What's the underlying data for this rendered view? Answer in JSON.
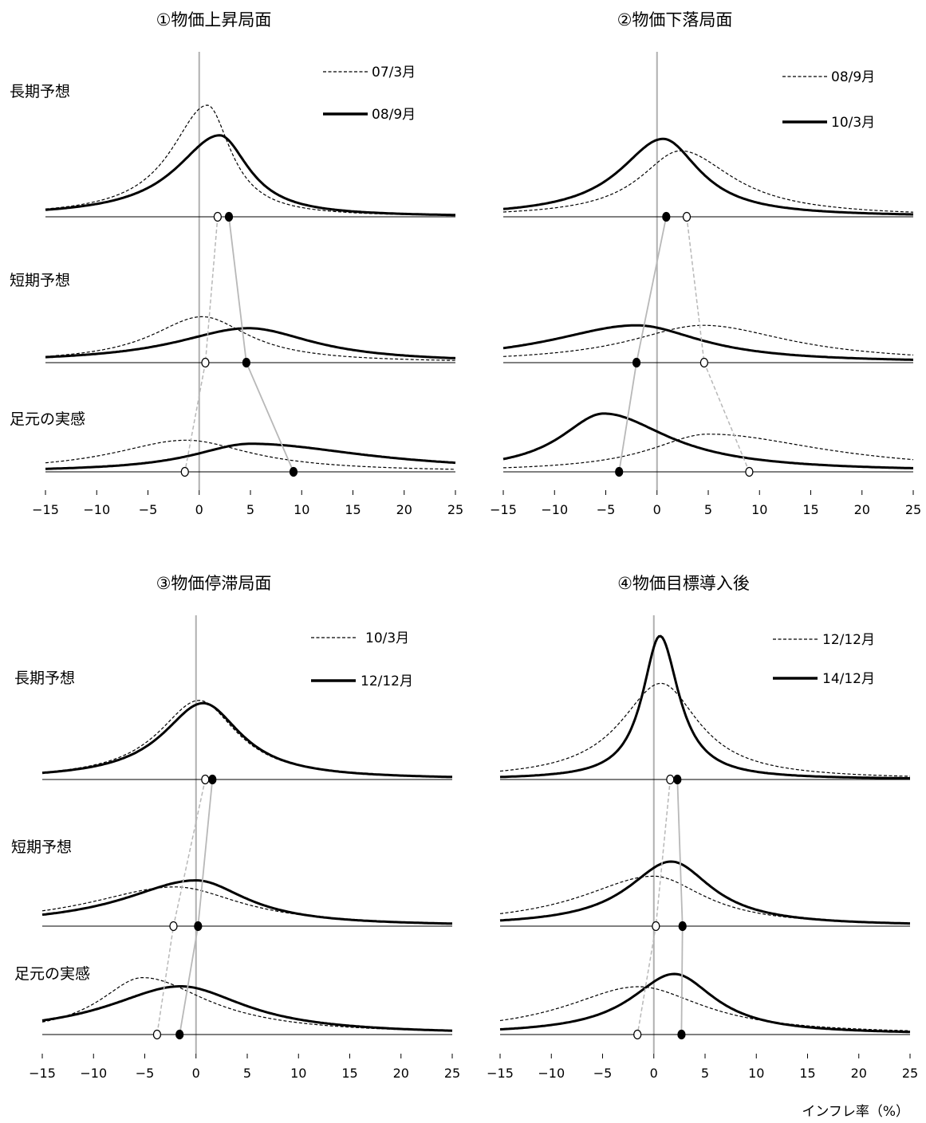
{
  "chart_data": {
    "type": "line",
    "xlabel": "インフレ率（%）",
    "xlim": [
      -15,
      25
    ],
    "x_ticks": [
      "−15",
      "−10",
      "−5",
      "0",
      "5",
      "10",
      "15",
      "20",
      "25"
    ],
    "row_labels": [
      "長期予想",
      "短期予想",
      "足元の実感"
    ],
    "panels": [
      {
        "title": "①物価上昇局面",
        "legend": [
          "07/3月",
          "08/9月"
        ],
        "rows": [
          {
            "label": "長期予想",
            "before": {
              "mode": 0.8,
              "s": 2.5,
              "d": 1.6,
              "peak": 1.0,
              "mean": 1.8
            },
            "after": {
              "mode": 2.0,
              "s": 3.0,
              "d": 2.0,
              "peak": 0.73,
              "mean": 2.9
            }
          },
          {
            "label": "短期予想",
            "before": {
              "mode": 0.3,
              "s": 3.5,
              "d": 3.2,
              "peak": 0.8,
              "mean": 0.6
            },
            "after": {
              "mode": 4.8,
              "s": 5.0,
              "d": 4.5,
              "peak": 0.6,
              "mean": 4.6
            }
          },
          {
            "label": "足元の実感",
            "before": {
              "mode": -1.3,
              "s": 5.0,
              "d": 4.5,
              "peak": 0.62,
              "mean": -1.4
            },
            "after": {
              "mode": 5.0,
              "s": 4.0,
              "d": 8.0,
              "peak": 0.55,
              "mean": 9.2
            }
          }
        ]
      },
      {
        "title": "②物価下落局面",
        "legend": [
          "08/9月",
          "10/3月"
        ],
        "rows": [
          {
            "label": "長期予想",
            "before": {
              "mode": 2.3,
              "s": 2.8,
              "d": 3.6,
              "peak": 0.72,
              "mean": 2.9
            },
            "after": {
              "mode": 0.6,
              "s": 3.0,
              "d": 2.5,
              "peak": 0.85,
              "mean": 0.9
            }
          },
          {
            "label": "短期予想",
            "before": {
              "mode": 4.5,
              "s": 5.0,
              "d": 6.0,
              "peak": 0.65,
              "mean": 4.6
            },
            "after": {
              "mode": -2.0,
              "s": 6.0,
              "d": 4.5,
              "peak": 0.65,
              "mean": -2.0
            }
          },
          {
            "label": "足元の実感",
            "before": {
              "mode": 5.0,
              "s": 4.0,
              "d": 8.0,
              "peak": 0.55,
              "mean": 9.0
            },
            "after": {
              "mode": -5.2,
              "s": 3.0,
              "d": 4.5,
              "peak": 0.85,
              "mean": -3.7
            }
          }
        ]
      },
      {
        "title": "③物価停滞局面",
        "legend": [
          "10/3月",
          "12/12月"
        ],
        "rows": [
          {
            "label": "長期予想",
            "before": {
              "mode": 0.3,
              "s": 2.8,
              "d": 2.6,
              "peak": 0.87,
              "mean": 0.9
            },
            "after": {
              "mode": 0.7,
              "s": 2.8,
              "d": 2.6,
              "peak": 0.84,
              "mean": 1.6
            }
          },
          {
            "label": "短期予想",
            "before": {
              "mode": -2.0,
              "s": 6.0,
              "d": 4.5,
              "peak": 0.6,
              "mean": -2.2
            },
            "after": {
              "mode": 0.0,
              "s": 5.0,
              "d": 3.5,
              "peak": 0.7,
              "mean": 0.2
            }
          },
          {
            "label": "足元の実感",
            "before": {
              "mode": -5.2,
              "s": 3.0,
              "d": 4.5,
              "peak": 0.85,
              "mean": -3.8
            },
            "after": {
              "mode": -1.5,
              "s": 5.0,
              "d": 4.5,
              "peak": 0.72,
              "mean": -1.6
            }
          }
        ]
      },
      {
        "title": "④物価目標導入後",
        "legend": [
          "12/12月",
          "14/12月"
        ],
        "rows": [
          {
            "label": "長期予想",
            "before": {
              "mode": 0.7,
              "s": 2.8,
              "d": 2.6,
              "peak": 0.67,
              "mean": 1.6
            },
            "after": {
              "mode": 0.6,
              "s": 1.2,
              "d": 1.3,
              "peak": 1.0,
              "mean": 2.3
            }
          },
          {
            "label": "短期予想",
            "before": {
              "mode": 0.0,
              "s": 5.0,
              "d": 3.5,
              "peak": 0.58,
              "mean": 0.2
            },
            "after": {
              "mode": 1.7,
              "s": 3.0,
              "d": 2.8,
              "peak": 0.75,
              "mean": 2.8
            }
          },
          {
            "label": "足元の実感",
            "before": {
              "mode": -1.5,
              "s": 5.0,
              "d": 4.5,
              "peak": 0.6,
              "mean": -1.6
            },
            "after": {
              "mode": 2.0,
              "s": 3.0,
              "d": 2.8,
              "peak": 0.76,
              "mean": 2.7
            }
          }
        ]
      }
    ]
  }
}
